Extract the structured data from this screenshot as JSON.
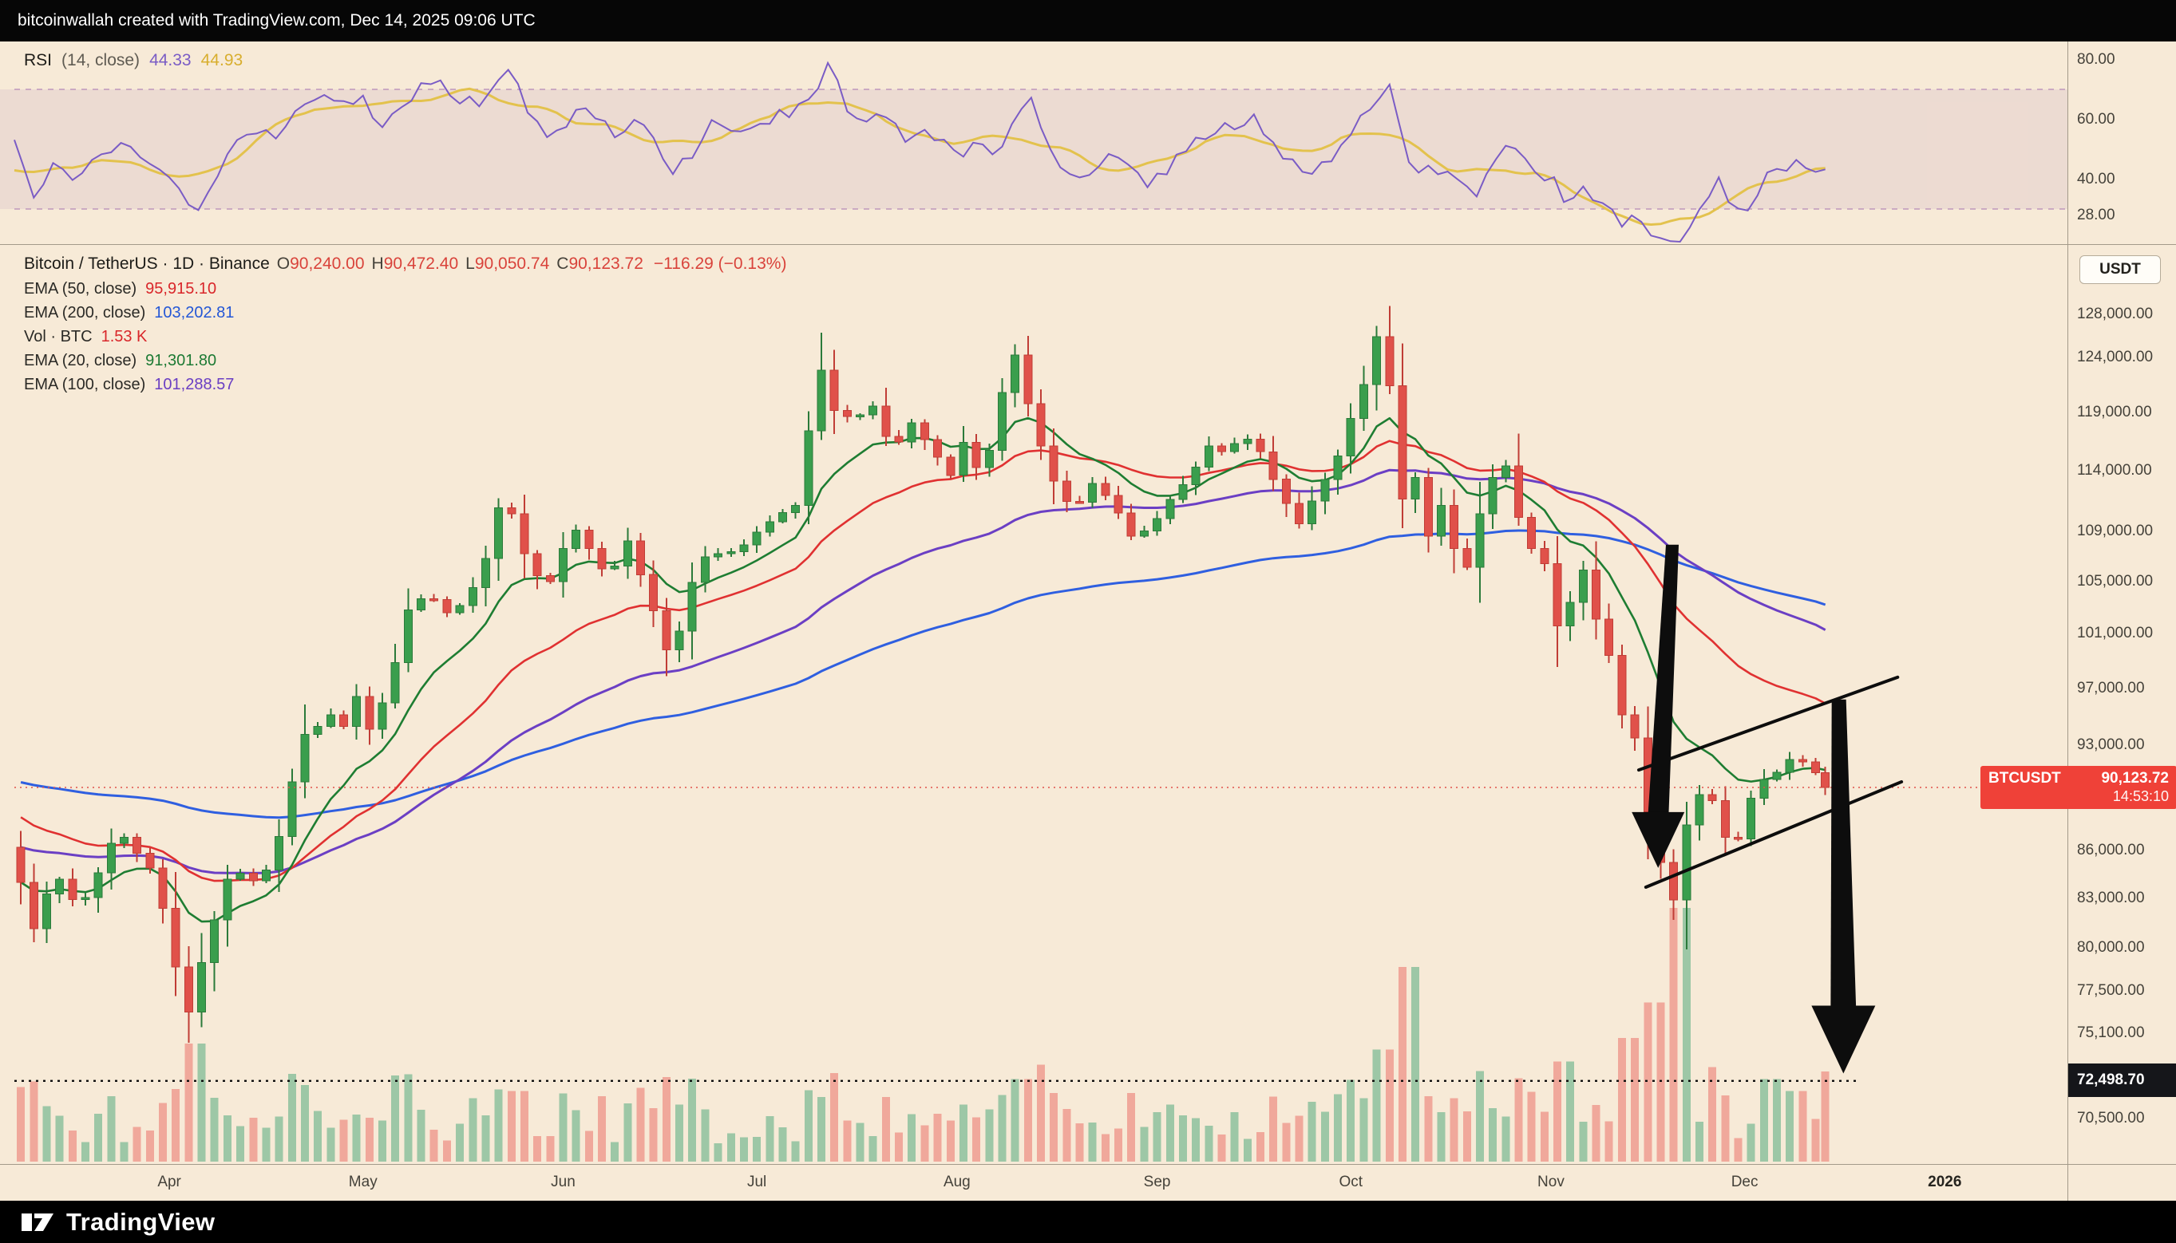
{
  "top_bar": {
    "text": "bitcoinwallah created with TradingView.com, Dec 14, 2025 09:06 UTC"
  },
  "rsi_panel": {
    "legend": {
      "name": "RSI",
      "params": "(14, close)",
      "value": "44.33",
      "ma_value": "44.93"
    },
    "scale_labels": [
      {
        "label": "80.00",
        "value": 80
      },
      {
        "label": "60.00",
        "value": 60
      },
      {
        "label": "40.00",
        "value": 40
      },
      {
        "label": "28.00",
        "value": 28
      }
    ],
    "bands": {
      "upper": 70,
      "lower": 30
    }
  },
  "main_panel": {
    "legend": {
      "title": "Bitcoin / TetherUS · 1D · Binance",
      "ohlc": {
        "o_label": "O",
        "o": "90,240.00",
        "h_label": "H",
        "h": "90,472.40",
        "l_label": "L",
        "l": "90,050.74",
        "c_label": "C",
        "c": "90,123.72",
        "change": "−116.29 (−0.13%)"
      },
      "indicators": [
        {
          "label": "EMA (50, close)",
          "value": "95,915.10",
          "color": "#d9262a"
        },
        {
          "label": "EMA (200, close)",
          "value": "103,202.81",
          "color": "#2457d6"
        },
        {
          "label": "Vol · BTC",
          "value": "1.53 K",
          "color": "#d9262a"
        },
        {
          "label": "EMA (20, close)",
          "value": "91,301.80",
          "color": "#1d7a34"
        },
        {
          "label": "EMA (100, close)",
          "value": "101,288.57",
          "color": "#6a3fc3"
        }
      ]
    }
  },
  "price_scale": {
    "currency_button": "USDT",
    "labels": [
      {
        "label": "128,000.00",
        "value": 128000
      },
      {
        "label": "124,000.00",
        "value": 124000
      },
      {
        "label": "119,000.00",
        "value": 119000
      },
      {
        "label": "114,000.00",
        "value": 114000
      },
      {
        "label": "109,000.00",
        "value": 109000
      },
      {
        "label": "105,000.00",
        "value": 105000
      },
      {
        "label": "101,000.00",
        "value": 101000
      },
      {
        "label": "97,000.00",
        "value": 97000
      },
      {
        "label": "93,000.00",
        "value": 93000
      },
      {
        "label": "86,000.00",
        "value": 86000
      },
      {
        "label": "83,000.00",
        "value": 83000
      },
      {
        "label": "80,000.00",
        "value": 80000
      },
      {
        "label": "77,500.00",
        "value": 77500
      },
      {
        "label": "75,100.00",
        "value": 75100
      },
      {
        "label": "70,500.00",
        "value": 70500
      }
    ],
    "last_price_badge": {
      "symbol": "BTCUSDT",
      "price": "90,123.72",
      "countdown": "14:53:10"
    },
    "level_badge": {
      "label": "72,498.70",
      "value": 72498.7
    }
  },
  "footer": {
    "brand": "TradingView"
  },
  "theme": {
    "background": "#f7ead7",
    "panel_border": "#a39a8a",
    "up": "#3a9e4d",
    "up_wick": "#2b7a3a",
    "down": "#e0514a",
    "down_wick": "#c03d36",
    "vol_up": "rgba(84,170,126,0.55)",
    "vol_down": "rgba(233,102,96,0.5)",
    "ema20": "#1e7d32",
    "ema50": "#e03131",
    "ema100": "#6b3fc4",
    "ema200": "#2f5fe0",
    "rsi": "#7a5cc5",
    "rsi_ma": "#e3c24d",
    "band_fill": "rgba(150,90,170,0.10)",
    "band_line": "rgba(150,90,170,0.55)",
    "badge_red": "#ef4138",
    "badge_black": "#15161a",
    "annotation": "#0d0d0d"
  },
  "chart_data": {
    "type": "candlestick",
    "symbol": "BTCUSDT",
    "exchange": "Binance",
    "interval": "1D",
    "title": "Bitcoin / TetherUS · 1D · Binance",
    "ohlc_current": {
      "open": 90240.0,
      "high": 90472.4,
      "low": 90050.74,
      "close": 90123.72,
      "change": -116.29,
      "change_pct": -0.13
    },
    "emas": {
      "20": 91301.8,
      "50": 95915.1,
      "100": 101288.57,
      "200": 103202.81
    },
    "current_volume_btc": 1.53,
    "rsi_current": 44.33,
    "rsi_ma_current": 44.93,
    "y_axis": {
      "scale": "log",
      "range": [
        68200,
        134800
      ],
      "tick_values": [
        128000,
        124000,
        119000,
        114000,
        109000,
        105000,
        101000,
        97000,
        93000,
        86000,
        83000,
        80000,
        77500,
        75100,
        70500
      ]
    },
    "x_axis": {
      "months": [
        {
          "label": "Apr",
          "day": 24
        },
        {
          "label": "May",
          "day": 54
        },
        {
          "label": "Jun",
          "day": 85
        },
        {
          "label": "Jul",
          "day": 115
        },
        {
          "label": "Aug",
          "day": 146
        },
        {
          "label": "Sep",
          "day": 177
        },
        {
          "label": "Oct",
          "day": 207
        },
        {
          "label": "Nov",
          "day": 238
        },
        {
          "label": "Dec",
          "day": 268
        }
      ],
      "year": {
        "label": "2026",
        "day": 299
      },
      "domain_days": [
        0,
        318
      ],
      "last_bar_day": 281
    },
    "price_path": [
      [
        0,
        86200
      ],
      [
        2,
        84000
      ],
      [
        3,
        79500
      ],
      [
        5,
        82800
      ],
      [
        8,
        84200
      ],
      [
        11,
        82300
      ],
      [
        14,
        84600
      ],
      [
        17,
        87400
      ],
      [
        19,
        86300
      ],
      [
        22,
        84900
      ],
      [
        24,
        82400
      ],
      [
        26,
        78900
      ],
      [
        28,
        76300
      ],
      [
        29,
        78500
      ],
      [
        31,
        79800
      ],
      [
        33,
        83600
      ],
      [
        35,
        84800
      ],
      [
        38,
        84100
      ],
      [
        41,
        85100
      ],
      [
        44,
        90500
      ],
      [
        45,
        93600
      ],
      [
        47,
        93900
      ],
      [
        50,
        95100
      ],
      [
        52,
        94300
      ],
      [
        54,
        96400
      ],
      [
        56,
        94100
      ],
      [
        59,
        96900
      ],
      [
        62,
        102800
      ],
      [
        65,
        104100
      ],
      [
        68,
        102600
      ],
      [
        71,
        103400
      ],
      [
        74,
        106800
      ],
      [
        76,
        110900
      ],
      [
        78,
        110400
      ],
      [
        80,
        107200
      ],
      [
        83,
        104600
      ],
      [
        85,
        105400
      ],
      [
        87,
        109800
      ],
      [
        90,
        107600
      ],
      [
        93,
        105200
      ],
      [
        96,
        108200
      ],
      [
        99,
        104200
      ],
      [
        102,
        99800
      ],
      [
        104,
        101200
      ],
      [
        107,
        106800
      ],
      [
        110,
        107200
      ],
      [
        113,
        107400
      ],
      [
        116,
        108900
      ],
      [
        119,
        110200
      ],
      [
        122,
        111100
      ],
      [
        124,
        117400
      ],
      [
        126,
        122800
      ],
      [
        128,
        119200
      ],
      [
        131,
        118400
      ],
      [
        134,
        119600
      ],
      [
        137,
        115600
      ],
      [
        140,
        118100
      ],
      [
        143,
        115900
      ],
      [
        146,
        113600
      ],
      [
        148,
        116400
      ],
      [
        151,
        113200
      ],
      [
        154,
        120800
      ],
      [
        156,
        124200
      ],
      [
        159,
        117600
      ],
      [
        162,
        113100
      ],
      [
        165,
        110600
      ],
      [
        168,
        112900
      ],
      [
        171,
        111400
      ],
      [
        174,
        108600
      ],
      [
        177,
        109200
      ],
      [
        180,
        111600
      ],
      [
        183,
        113400
      ],
      [
        186,
        116100
      ],
      [
        189,
        115400
      ],
      [
        191,
        117200
      ],
      [
        194,
        115600
      ],
      [
        197,
        112100
      ],
      [
        200,
        109600
      ],
      [
        203,
        112400
      ],
      [
        205,
        114100
      ],
      [
        207,
        116400
      ],
      [
        209,
        120600
      ],
      [
        211,
        122400
      ],
      [
        212,
        125900
      ],
      [
        214,
        121400
      ],
      [
        216,
        111600
      ],
      [
        218,
        113400
      ],
      [
        220,
        108600
      ],
      [
        222,
        111100
      ],
      [
        224,
        107600
      ],
      [
        226,
        106100
      ],
      [
        228,
        110400
      ],
      [
        230,
        113400
      ],
      [
        232,
        114400
      ],
      [
        234,
        110100
      ],
      [
        236,
        107600
      ],
      [
        238,
        106400
      ],
      [
        240,
        101600
      ],
      [
        242,
        103400
      ],
      [
        244,
        105900
      ],
      [
        246,
        102100
      ],
      [
        248,
        99400
      ],
      [
        250,
        95100
      ],
      [
        251,
        96400
      ],
      [
        253,
        90600
      ],
      [
        255,
        86400
      ],
      [
        257,
        84100
      ],
      [
        258,
        82900
      ],
      [
        259,
        86900
      ],
      [
        261,
        88400
      ],
      [
        263,
        90900
      ],
      [
        265,
        87600
      ],
      [
        267,
        86100
      ],
      [
        269,
        87400
      ],
      [
        271,
        91400
      ],
      [
        273,
        89900
      ],
      [
        275,
        92400
      ],
      [
        277,
        91600
      ],
      [
        279,
        92100
      ],
      [
        281,
        90123
      ]
    ],
    "rsi_path": [
      [
        0,
        52
      ],
      [
        3,
        36
      ],
      [
        6,
        44
      ],
      [
        10,
        41
      ],
      [
        14,
        50
      ],
      [
        18,
        52
      ],
      [
        22,
        44
      ],
      [
        26,
        34
      ],
      [
        28,
        29
      ],
      [
        31,
        40
      ],
      [
        34,
        52
      ],
      [
        37,
        56
      ],
      [
        40,
        54
      ],
      [
        44,
        64
      ],
      [
        46,
        68
      ],
      [
        50,
        66
      ],
      [
        52,
        62
      ],
      [
        54,
        66
      ],
      [
        57,
        58
      ],
      [
        60,
        62
      ],
      [
        63,
        70
      ],
      [
        66,
        71
      ],
      [
        69,
        65
      ],
      [
        72,
        66
      ],
      [
        75,
        72
      ],
      [
        77,
        76
      ],
      [
        80,
        60
      ],
      [
        83,
        55
      ],
      [
        85,
        58
      ],
      [
        88,
        66
      ],
      [
        91,
        58
      ],
      [
        94,
        54
      ],
      [
        97,
        60
      ],
      [
        100,
        48
      ],
      [
        102,
        42
      ],
      [
        105,
        49
      ],
      [
        108,
        58
      ],
      [
        111,
        57
      ],
      [
        114,
        57
      ],
      [
        117,
        60
      ],
      [
        120,
        62
      ],
      [
        124,
        70
      ],
      [
        126,
        79
      ],
      [
        129,
        64
      ],
      [
        132,
        60
      ],
      [
        135,
        62
      ],
      [
        138,
        53
      ],
      [
        141,
        58
      ],
      [
        144,
        52
      ],
      [
        147,
        48
      ],
      [
        149,
        56
      ],
      [
        152,
        47
      ],
      [
        155,
        62
      ],
      [
        157,
        69
      ],
      [
        160,
        52
      ],
      [
        163,
        43
      ],
      [
        166,
        40
      ],
      [
        169,
        47
      ],
      [
        172,
        44
      ],
      [
        175,
        38
      ],
      [
        178,
        42
      ],
      [
        181,
        49
      ],
      [
        184,
        54
      ],
      [
        187,
        58
      ],
      [
        190,
        55
      ],
      [
        192,
        60
      ],
      [
        195,
        52
      ],
      [
        198,
        45
      ],
      [
        201,
        40
      ],
      [
        204,
        48
      ],
      [
        206,
        53
      ],
      [
        208,
        58
      ],
      [
        211,
        65
      ],
      [
        213,
        71
      ],
      [
        215,
        52
      ],
      [
        217,
        40
      ],
      [
        219,
        45
      ],
      [
        221,
        38
      ],
      [
        223,
        43
      ],
      [
        225,
        37
      ],
      [
        227,
        36
      ],
      [
        229,
        44
      ],
      [
        231,
        50
      ],
      [
        233,
        52
      ],
      [
        235,
        44
      ],
      [
        237,
        40
      ],
      [
        239,
        38
      ],
      [
        241,
        31
      ],
      [
        243,
        36
      ],
      [
        245,
        33
      ],
      [
        247,
        29
      ],
      [
        249,
        25
      ],
      [
        251,
        30
      ],
      [
        253,
        24
      ],
      [
        255,
        21
      ],
      [
        257,
        19
      ],
      [
        258,
        18.5
      ],
      [
        260,
        26
      ],
      [
        262,
        34
      ],
      [
        264,
        40
      ],
      [
        266,
        31
      ],
      [
        268,
        29
      ],
      [
        270,
        34
      ],
      [
        272,
        43
      ],
      [
        274,
        40
      ],
      [
        276,
        46
      ],
      [
        278,
        43
      ],
      [
        280,
        46
      ],
      [
        281,
        44.33
      ]
    ],
    "volume_spikes": [
      [
        28,
        2.0
      ],
      [
        45,
        1.3
      ],
      [
        76,
        1.2
      ],
      [
        127,
        1.5
      ],
      [
        156,
        1.4
      ],
      [
        212,
        1.9
      ],
      [
        216,
        3.3
      ],
      [
        240,
        1.7
      ],
      [
        250,
        2.1
      ],
      [
        254,
        2.7
      ],
      [
        258,
        4.3
      ],
      [
        259,
        3.0
      ],
      [
        263,
        1.6
      ],
      [
        272,
        1.4
      ],
      [
        276,
        1.2
      ],
      [
        281,
        1.53
      ]
    ],
    "annotations": {
      "trend_channel": {
        "upper": [
          [
            251.6,
            91300
          ],
          [
            291.7,
            97800
          ]
        ],
        "lower": [
          [
            252.7,
            83700
          ],
          [
            292.3,
            90500
          ]
        ]
      },
      "arrows": [
        {
          "from_day": 256.8,
          "from_price": 107900,
          "to_day": 254.6,
          "to_price": 84900,
          "shaft_w1": 8,
          "shaft_w2": 13,
          "head_w": 33,
          "head_len": 70
        },
        {
          "from_day": 282.6,
          "from_price": 96200,
          "to_day": 283.3,
          "to_price": 72900,
          "shaft_w1": 9,
          "shaft_w2": 16,
          "head_w": 40,
          "head_len": 85
        }
      ],
      "support_line": {
        "price": 72498.7,
        "label": "72,498.70",
        "style": "dotted"
      },
      "last_price_line": {
        "price": 90123.72
      }
    }
  }
}
